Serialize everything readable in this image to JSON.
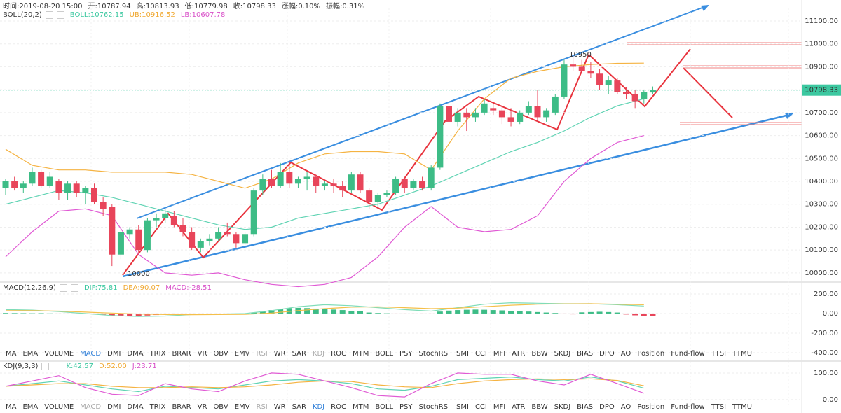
{
  "header": {
    "time": "时间:2019-08-20 15:00",
    "open": "开:10787.94",
    "high": "高:10813.93",
    "low": "低:10779.98",
    "close": "收:10798.33",
    "change": "涨幅:0.10%",
    "amplitude": "振幅:0.31%"
  },
  "panels": [
    {
      "title": "BOLL(20,2)",
      "items": [
        {
          "text": "BOLL:10762.15",
          "color": "#3cc8a0"
        },
        {
          "text": "UB:10916.52",
          "color": "#f0a830"
        },
        {
          "text": "LB:10607.78",
          "color": "#d850c8"
        }
      ]
    },
    {
      "title": "MACD(12,26,9)",
      "items": [
        {
          "text": "DIF:75.81",
          "color": "#3cc8a0"
        },
        {
          "text": "DEA:90.07",
          "color": "#f0a830"
        },
        {
          "text": "MACD:-28.51",
          "color": "#d850c8"
        }
      ]
    },
    {
      "title": "KDJ(9,3,3)",
      "items": [
        {
          "text": "K:42.57",
          "color": "#3cc8a0"
        },
        {
          "text": "D:52.00",
          "color": "#f0a830"
        },
        {
          "text": "J:23.71",
          "color": "#d850c8"
        }
      ]
    }
  ],
  "toolbars": [
    {
      "tabs": [
        "MA",
        "EMA",
        "VOLUME",
        "MACD",
        "DMI",
        "DMA",
        "TRIX",
        "BRAR",
        "VR",
        "OBV",
        "EMV",
        "RSI",
        "WR",
        "SAR",
        "KDJ",
        "ROC",
        "MTM",
        "BOLL",
        "PSY",
        "StochRSI",
        "SMI",
        "CCI",
        "MFI",
        "ATR",
        "BBW",
        "SKDJ",
        "BIAS",
        "DPO",
        "AO",
        "Position",
        "Fund-flow",
        "TTSI",
        "TTMU"
      ],
      "active": 3,
      "dimmed": [
        11,
        14
      ]
    },
    {
      "tabs": [
        "MA",
        "EMA",
        "VOLUME",
        "MACD",
        "DMI",
        "DMA",
        "TRIX",
        "BRAR",
        "VR",
        "OBV",
        "EMV",
        "RSI",
        "WR",
        "SAR",
        "KDJ",
        "ROC",
        "MTM",
        "BOLL",
        "PSY",
        "StochRSI",
        "SMI",
        "CCI",
        "MFI",
        "ATR",
        "BBW",
        "SKDJ",
        "BIAS",
        "DPO",
        "AO",
        "Position",
        "Fund-flow",
        "TTSI",
        "TTMU"
      ],
      "active": 14,
      "dimmed": [
        3,
        11
      ]
    }
  ],
  "chart_data": [
    {
      "type": "candlestick",
      "up_color": "#3dbc86",
      "down_color": "#e8455a",
      "open": [
        10370,
        10400,
        10370,
        10390,
        10440,
        10380,
        10400,
        10350,
        10390,
        10350,
        10370,
        10310,
        10290,
        10080,
        10170,
        10190,
        10100,
        10230,
        10240,
        10250,
        10210,
        10180,
        10110,
        10140,
        10150,
        10180,
        10170,
        10130,
        10170,
        10360,
        10410,
        10380,
        10440,
        10390,
        10410,
        10420,
        10380,
        10390,
        10380,
        10360,
        10430,
        10360,
        10310,
        10340,
        10350,
        10410,
        10370,
        10400,
        10370,
        10460,
        10730,
        10660,
        10700,
        10680,
        10700,
        10720,
        10710,
        10680,
        10660,
        10700,
        10730,
        10680,
        10700,
        10770,
        10910,
        10900,
        10880,
        10870,
        10820,
        10840,
        10790,
        10780,
        10760,
        10787.94
      ],
      "high": [
        10410,
        10420,
        10400,
        10460,
        10450,
        10440,
        10410,
        10400,
        10400,
        10380,
        10390,
        10330,
        10300,
        10200,
        10200,
        10210,
        10240,
        10260,
        10280,
        10270,
        10240,
        10200,
        10150,
        10170,
        10200,
        10220,
        10180,
        10180,
        10370,
        10430,
        10450,
        10480,
        10490,
        10420,
        10440,
        10430,
        10400,
        10410,
        10400,
        10440,
        10440,
        10370,
        10350,
        10360,
        10420,
        10420,
        10410,
        10420,
        10470,
        10740,
        10750,
        10720,
        10720,
        10720,
        10760,
        10740,
        10730,
        10720,
        10710,
        10750,
        10800,
        10720,
        10780,
        10930,
        10950,
        10930,
        10920,
        10890,
        10860,
        10850,
        10810,
        10800,
        10800,
        10813.93
      ],
      "low": [
        10340,
        10360,
        10350,
        10380,
        10370,
        10370,
        10320,
        10320,
        10330,
        10300,
        10300,
        10250,
        10030,
        10060,
        10150,
        10080,
        10090,
        10200,
        10220,
        10200,
        10160,
        10100,
        10090,
        10120,
        10140,
        10160,
        10110,
        10110,
        10160,
        10340,
        10370,
        10370,
        10370,
        10370,
        10360,
        10350,
        10360,
        10350,
        10330,
        10350,
        10350,
        10280,
        10290,
        10330,
        10340,
        10350,
        10360,
        10360,
        10360,
        10450,
        10640,
        10640,
        10620,
        10660,
        10690,
        10690,
        10650,
        10640,
        10650,
        10690,
        10660,
        10660,
        10690,
        10760,
        10880,
        10870,
        10850,
        10800,
        10780,
        10780,
        10760,
        10720,
        10740,
        10779.98
      ],
      "close": [
        10400,
        10370,
        10390,
        10440,
        10380,
        10420,
        10350,
        10390,
        10350,
        10370,
        10310,
        10280,
        10080,
        10180,
        10190,
        10100,
        10230,
        10240,
        10260,
        10210,
        10180,
        10110,
        10140,
        10150,
        10180,
        10170,
        10130,
        10170,
        10360,
        10410,
        10380,
        10440,
        10390,
        10410,
        10420,
        10380,
        10390,
        10380,
        10360,
        10430,
        10360,
        10310,
        10340,
        10350,
        10410,
        10370,
        10400,
        10370,
        10460,
        10730,
        10660,
        10700,
        10680,
        10700,
        10740,
        10710,
        10680,
        10660,
        10700,
        10730,
        10680,
        10710,
        10770,
        10910,
        10900,
        10880,
        10870,
        10820,
        10840,
        10790,
        10780,
        10750,
        10790,
        10798.33
      ],
      "series": [
        {
          "color": "#5fd3b3",
          "x": [
            0,
            3,
            6,
            9,
            12,
            15,
            18,
            21,
            24,
            27,
            30,
            33,
            36,
            39,
            42,
            45,
            48,
            51,
            54,
            57,
            60,
            63,
            66,
            69,
            72
          ],
          "values": [
            10300,
            10330,
            10360,
            10350,
            10330,
            10300,
            10270,
            10240,
            10210,
            10190,
            10200,
            10240,
            10260,
            10280,
            10300,
            10340,
            10380,
            10430,
            10480,
            10530,
            10570,
            10620,
            10680,
            10730,
            10760
          ]
        },
        {
          "color": "#f5b342",
          "x": [
            0,
            3,
            6,
            9,
            12,
            15,
            18,
            21,
            24,
            27,
            30,
            33,
            36,
            39,
            42,
            45,
            48,
            51,
            54,
            57,
            60,
            63,
            66,
            69,
            72
          ],
          "values": [
            10540,
            10470,
            10450,
            10450,
            10440,
            10440,
            10440,
            10430,
            10400,
            10370,
            10410,
            10480,
            10520,
            10530,
            10530,
            10520,
            10450,
            10620,
            10760,
            10850,
            10880,
            10900,
            10910,
            10915,
            10916
          ]
        },
        {
          "color": "#e05ad4",
          "x": [
            0,
            3,
            6,
            9,
            12,
            15,
            18,
            21,
            24,
            27,
            30,
            33,
            36,
            39,
            42,
            45,
            48,
            51,
            54,
            57,
            60,
            63,
            66,
            69,
            72
          ],
          "values": [
            10070,
            10180,
            10270,
            10280,
            10250,
            10080,
            10000,
            9990,
            10000,
            9970,
            9950,
            9940,
            9950,
            9980,
            10070,
            10200,
            10290,
            10200,
            10180,
            10190,
            10250,
            10400,
            10500,
            10570,
            10600
          ]
        }
      ],
      "annotations": [
        "10950",
        "10000"
      ],
      "last_price": 10798.33,
      "ylim": [
        9963,
        11155
      ],
      "yticks": [
        {
          "value": 10000,
          "label": "10000.00"
        },
        {
          "value": 10100,
          "label": "10100.00"
        },
        {
          "value": 10200,
          "label": "10200.00"
        },
        {
          "value": 10300,
          "label": "10300.00"
        },
        {
          "value": 10400,
          "label": "10400.00"
        },
        {
          "value": 10500,
          "label": "10500.00"
        },
        {
          "value": 10600,
          "label": "10600.00"
        },
        {
          "value": 10700,
          "label": "10700.00"
        },
        {
          "value": 10800,
          "label": "10800.00"
        },
        {
          "value": 10900,
          "label": "10900.00"
        },
        {
          "value": 11000,
          "label": "11000.00"
        },
        {
          "value": 11100,
          "label": "11100.00"
        }
      ]
    },
    {
      "type": "macd",
      "up_color": "#3dbc86",
      "down_color": "#e8455a",
      "values": [
        5,
        4,
        3,
        2,
        3,
        1,
        -2,
        -3,
        -5,
        -6,
        -8,
        -10,
        -20,
        -25,
        -22,
        -28,
        -20,
        -15,
        -10,
        -8,
        -8,
        -10,
        -10,
        -8,
        -5,
        -6,
        -8,
        -6,
        10,
        25,
        35,
        45,
        55,
        58,
        55,
        50,
        45,
        40,
        35,
        28,
        22,
        10,
        5,
        2,
        -2,
        -3,
        -4,
        -5,
        -2,
        20,
        30,
        35,
        38,
        40,
        38,
        35,
        32,
        28,
        24,
        20,
        15,
        10,
        5,
        -5,
        -8,
        12,
        15,
        18,
        15,
        10,
        -10,
        -18,
        -24,
        -28.51
      ],
      "series": [
        {
          "color": "#7fdcb8",
          "x": [
            0,
            3,
            6,
            9,
            12,
            15,
            18,
            21,
            24,
            27,
            30,
            33,
            36,
            39,
            42,
            45,
            48,
            51,
            54,
            57,
            60,
            63,
            66,
            69,
            72
          ],
          "values": [
            40,
            35,
            20,
            0,
            -20,
            -30,
            -25,
            -10,
            -5,
            0,
            30,
            70,
            90,
            80,
            60,
            40,
            25,
            60,
            95,
            110,
            105,
            100,
            100,
            90,
            76
          ]
        },
        {
          "color": "#f5c04a",
          "x": [
            0,
            3,
            6,
            9,
            12,
            15,
            18,
            21,
            24,
            27,
            30,
            33,
            36,
            39,
            42,
            45,
            48,
            51,
            54,
            57,
            60,
            63,
            66,
            69,
            72
          ],
          "values": [
            30,
            30,
            25,
            15,
            5,
            -5,
            -10,
            -12,
            -10,
            -8,
            5,
            30,
            50,
            65,
            68,
            60,
            50,
            55,
            70,
            85,
            95,
            98,
            100,
            95,
            90
          ]
        }
      ],
      "ylim": [
        -479,
        307
      ],
      "yticks": [
        {
          "value": 200,
          "label": "200.00"
        },
        {
          "value": 0,
          "label": "0.00"
        },
        {
          "value": -200,
          "label": "-200.00"
        },
        {
          "value": -400,
          "label": "-400.00"
        }
      ]
    },
    {
      "type": "line",
      "series": [
        {
          "color": "#5fd3b3",
          "x": [
            0,
            3,
            6,
            9,
            12,
            15,
            18,
            21,
            24,
            27,
            30,
            33,
            36,
            39,
            42,
            45,
            48,
            51,
            54,
            57,
            60,
            63,
            66,
            69,
            72
          ],
          "values": [
            50,
            60,
            70,
            55,
            40,
            30,
            50,
            45,
            40,
            55,
            70,
            75,
            70,
            60,
            40,
            35,
            50,
            75,
            80,
            85,
            75,
            70,
            85,
            70,
            43
          ]
        },
        {
          "color": "#f5b342",
          "x": [
            0,
            3,
            6,
            9,
            12,
            15,
            18,
            21,
            24,
            27,
            30,
            33,
            36,
            39,
            42,
            45,
            48,
            51,
            54,
            57,
            60,
            63,
            66,
            69,
            72
          ],
          "values": [
            50,
            55,
            60,
            60,
            50,
            45,
            45,
            48,
            45,
            48,
            55,
            65,
            70,
            68,
            55,
            48,
            45,
            60,
            70,
            75,
            78,
            75,
            78,
            72,
            52
          ]
        },
        {
          "color": "#e05ad4",
          "x": [
            0,
            3,
            6,
            9,
            12,
            15,
            18,
            21,
            24,
            27,
            30,
            33,
            36,
            39,
            42,
            45,
            48,
            51,
            54,
            57,
            60,
            63,
            66,
            69,
            72
          ],
          "values": [
            50,
            70,
            90,
            45,
            20,
            15,
            60,
            40,
            30,
            70,
            100,
            95,
            70,
            45,
            15,
            10,
            60,
            100,
            95,
            95,
            70,
            55,
            95,
            60,
            24
          ]
        }
      ],
      "ylim": [
        -24,
        142
      ],
      "yticks": [
        {
          "value": 100,
          "label": "100.00"
        },
        {
          "value": 0,
          "label": "0.00"
        }
      ]
    }
  ]
}
